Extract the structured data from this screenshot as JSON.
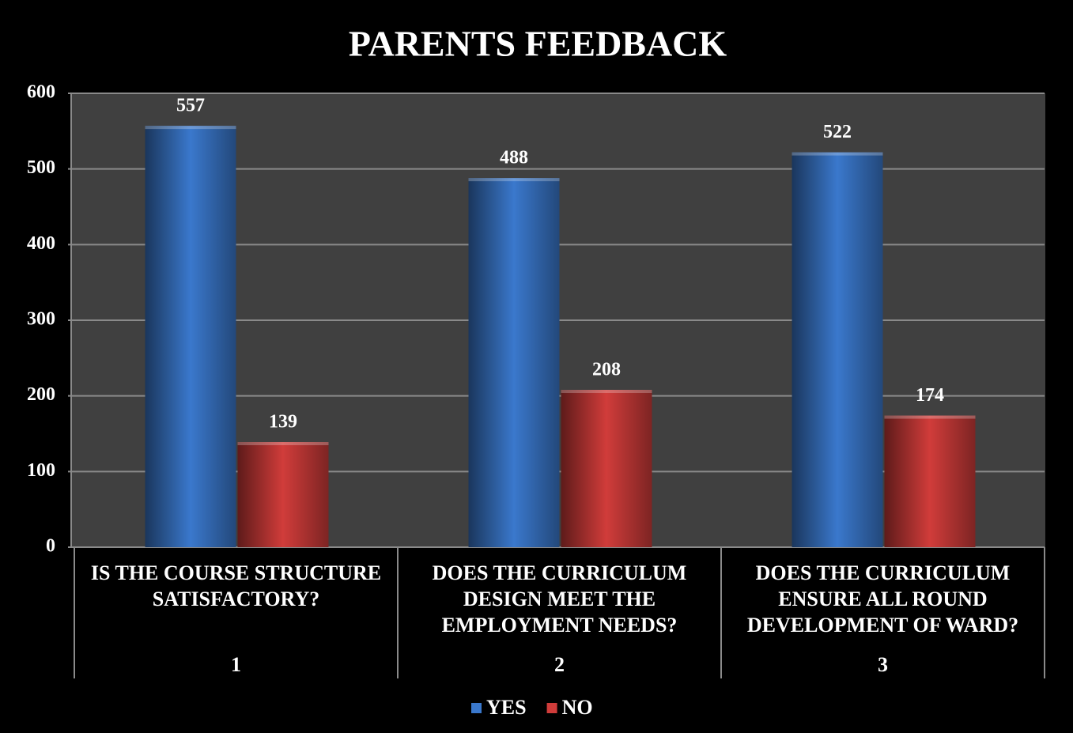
{
  "chart_data": {
    "type": "bar",
    "title": "PARENTS FEEDBACK",
    "categories": [
      "IS THE COURSE STRUCTURE SATISFACTORY?",
      "DOES THE CURRICULUM DESIGN MEET THE EMPLOYMENT NEEDS?",
      "DOES THE CURRICULUM ENSURE ALL ROUND DEVELOPMENT OF WARD?"
    ],
    "category_numbers": [
      "1",
      "2",
      "3"
    ],
    "series": [
      {
        "name": "YES",
        "color": "#3a78cc",
        "values": [
          557,
          488,
          522
        ]
      },
      {
        "name": "NO",
        "color": "#d03c3a",
        "values": [
          139,
          208,
          174
        ]
      }
    ],
    "ylim": [
      0,
      600
    ],
    "yticks": [
      0,
      100,
      200,
      300,
      400,
      500,
      600
    ],
    "grid": true,
    "legend": "bottom"
  }
}
